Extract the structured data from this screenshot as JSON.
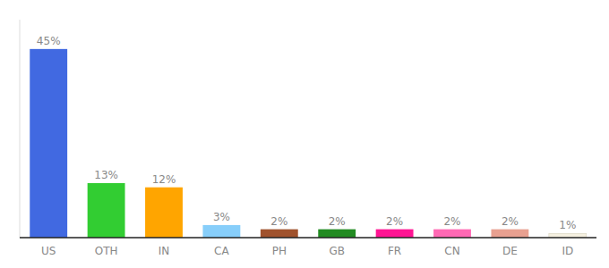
{
  "chart_data": {
    "type": "bar",
    "categories": [
      "US",
      "OTH",
      "IN",
      "CA",
      "PH",
      "GB",
      "FR",
      "CN",
      "DE",
      "ID"
    ],
    "values": [
      45,
      13,
      12,
      3,
      2,
      2,
      2,
      2,
      2,
      1
    ],
    "value_labels": [
      "45%",
      "13%",
      "12%",
      "3%",
      "2%",
      "2%",
      "2%",
      "2%",
      "2%",
      "1%"
    ],
    "colors": [
      "#4169e1",
      "#32cd32",
      "#ffa500",
      "#87cefa",
      "#a0522d",
      "#228b22",
      "#ff1493",
      "#ff69b4",
      "#e8a090",
      "#f5f0e0"
    ],
    "ylim": [
      0,
      52
    ],
    "data_labels": true,
    "tick_labels": "x",
    "grid": false
  }
}
